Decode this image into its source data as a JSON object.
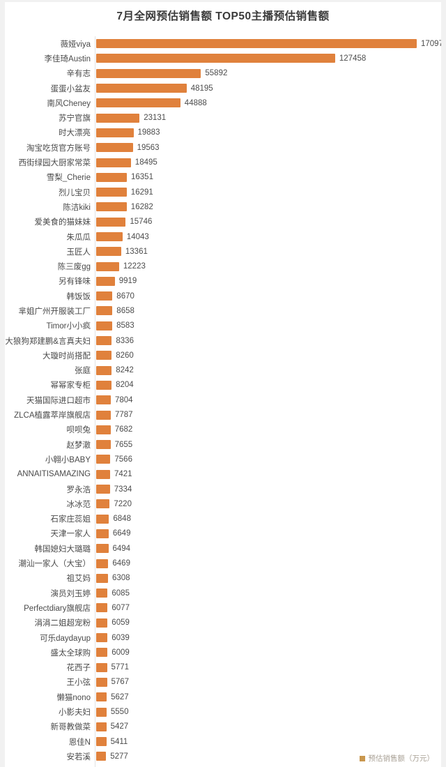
{
  "page": {
    "background": "#f1f1f1",
    "panel_background": "#ffffff"
  },
  "chart_data": {
    "type": "bar",
    "orientation": "horizontal",
    "title": "7月全网预估销售额 TOP50主播预估销售额",
    "legend_label": "预估销售额（万元）",
    "legend_position": "bottom-right",
    "bar_color": "#e0813c",
    "legend_swatch_color": "#c9974e",
    "grid": false,
    "xlim": [
      0,
      170972
    ],
    "value_labels_shown": true,
    "bottom_partial_bar": true,
    "categories": [
      "薇娅viya",
      "李佳琦Austin",
      "辛有志",
      "蛋蛋小盆友",
      "南风Cheney",
      "苏宁官旗",
      "时大漂亮",
      "淘宝吃货官方账号",
      "西街绿园大厨家常菜",
      "雪梨_Cherie",
      "烈儿宝贝",
      "陈洁kiki",
      "爱美食的猫妹妹",
      "朱瓜瓜",
      "玉匠人",
      "陈三废gg",
      "另有锋味",
      "韩饭饭",
      "芈姐广州开服装工厂",
      "Timor小小疯",
      "大狼狗郑建鹏&言真夫妇",
      "大璇时尚搭配",
      "张庭",
      "幂幂家专柜",
      "天猫国际进口超市",
      "ZLCA植露萃岸旗舰店",
      "呗呗兔",
      "赵梦澈",
      "小翱小BABY",
      "ANNAITISAMAZING",
      "罗永浩",
      "冰冰范",
      "石家庄蕊姐",
      "天津一家人",
      "韩国媳妇大璐璐",
      "潮汕一家人（大宝）",
      "祖艾妈",
      "演员刘玉婷",
      "Perfectdiary旗舰店",
      "涓涓二姐超宠粉",
      "可乐daydayup",
      "盛太全球购",
      "花西子",
      "王小弦",
      "懒猫nono",
      "小影夫妇",
      "新哥教做菜",
      "恩佳N",
      "安若溪"
    ],
    "values": [
      170972,
      127458,
      55892,
      48195,
      44888,
      23131,
      19883,
      19563,
      18495,
      16351,
      16291,
      16282,
      15746,
      14043,
      13361,
      12223,
      9919,
      8670,
      8658,
      8583,
      8336,
      8260,
      8242,
      8204,
      7804,
      7787,
      7682,
      7655,
      7566,
      7421,
      7334,
      7220,
      6848,
      6649,
      6494,
      6469,
      6308,
      6085,
      6077,
      6059,
      6039,
      6009,
      5771,
      5767,
      5627,
      5550,
      5427,
      5411,
      5277
    ]
  }
}
